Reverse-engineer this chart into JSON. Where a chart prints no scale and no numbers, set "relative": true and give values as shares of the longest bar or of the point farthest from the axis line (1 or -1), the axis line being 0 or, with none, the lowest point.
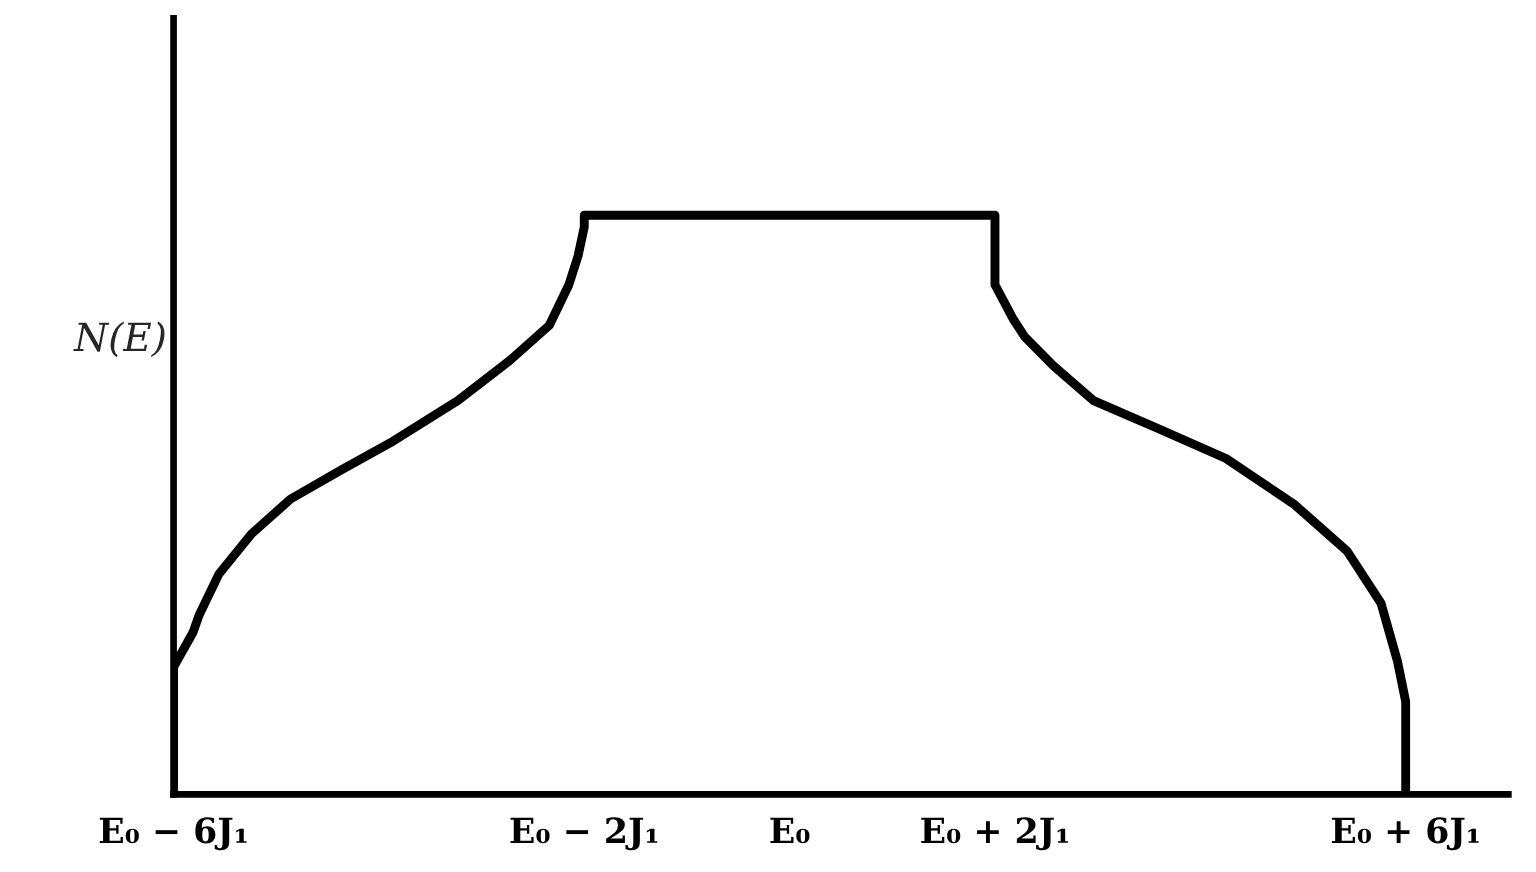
{
  "chart_data": {
    "type": "line",
    "ylabel": "N(E)",
    "relative": true,
    "color": "#000000",
    "x": [
      -6.0,
      -6.0,
      -5.81,
      -5.75,
      -5.56,
      -5.24,
      -4.86,
      -4.37,
      -3.86,
      -3.23,
      -2.72,
      -2.34,
      -2.15,
      -2.06,
      -2.0,
      -2.0,
      2.0,
      2.0,
      2.18,
      2.29,
      2.57,
      2.96,
      3.61,
      4.25,
      4.92,
      5.43,
      5.76,
      5.92,
      6.0,
      6.0
    ],
    "values": [
      0,
      0.22,
      0.28,
      0.31,
      0.38,
      0.45,
      0.51,
      0.56,
      0.61,
      0.68,
      0.75,
      0.81,
      0.88,
      0.93,
      0.98,
      1.0,
      1.0,
      0.88,
      0.82,
      0.79,
      0.74,
      0.68,
      0.63,
      0.58,
      0.5,
      0.42,
      0.33,
      0.23,
      0.16,
      0
    ],
    "xlim": [
      -6,
      7
    ],
    "xticks": [
      {
        "value": -6,
        "label": "E₀ − 6J₁"
      },
      {
        "value": -2,
        "label": "E₀ − 2J₁"
      },
      {
        "value": 0,
        "label": "E₀"
      },
      {
        "value": 2,
        "label": "E₀ + 2J₁"
      },
      {
        "value": 6,
        "label": "E₀ + 6J₁"
      }
    ]
  }
}
